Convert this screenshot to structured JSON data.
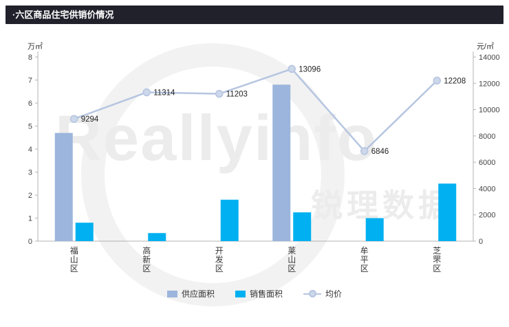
{
  "header": {
    "title": "·六区商品住宅供销价情况"
  },
  "watermark": {
    "line1": "Reallyinfo",
    "line2": "锐理数据"
  },
  "chart_data": {
    "type": "bar",
    "subtype": "bar+line combo",
    "categories": [
      "福山区",
      "高新区",
      "开发区",
      "莱山区",
      "牟平区",
      "芝罘区"
    ],
    "series": [
      {
        "name": "供应面积",
        "type": "bar",
        "axis": "left",
        "color": "#9cb5dc",
        "values": [
          4.7,
          0,
          0,
          6.8,
          0,
          0
        ]
      },
      {
        "name": "销售面积",
        "type": "bar",
        "axis": "left",
        "color": "#00b0f0",
        "values": [
          0.8,
          0.35,
          1.8,
          1.25,
          1.0,
          2.5
        ]
      },
      {
        "name": "均价",
        "type": "line",
        "axis": "right",
        "color": "#b5c5e1",
        "marker_fill": "#ccd7ea",
        "values": [
          9294,
          11314,
          11203,
          13096,
          6846,
          12208
        ],
        "show_labels": true
      }
    ],
    "left_axis": {
      "label": "万㎡",
      "min": 0,
      "max": 8,
      "step": 1
    },
    "right_axis": {
      "label": "元/㎡",
      "min": 0,
      "max": 14000,
      "step": 2000
    },
    "grid": false,
    "legend_position": "bottom",
    "label_color": "#222222",
    "axis_color": "#b3b3b3",
    "tick_text_color": "#444444"
  }
}
